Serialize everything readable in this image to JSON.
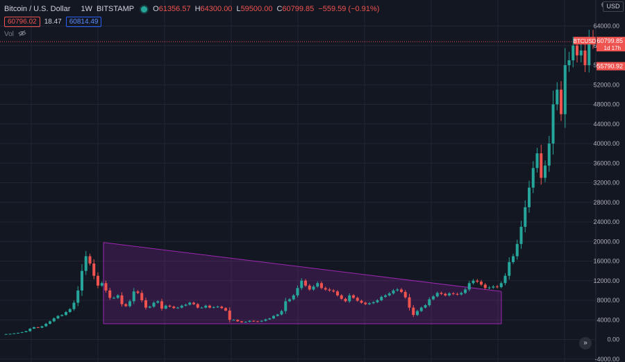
{
  "legend": {
    "symbol": "Bitcoin / U.S. Dollar",
    "interval": "1W",
    "exchange": "BITSTAMP",
    "open_label": "O",
    "open": "61356.57",
    "high_label": "H",
    "high": "64300.00",
    "low_label": "L",
    "low": "59500.00",
    "close_label": "C",
    "close": "60799.85",
    "change": "−559.59 (−0.91%)",
    "bid": "60796.02",
    "spread": "18.47",
    "ask": "60814.49",
    "volume_label": "Vol"
  },
  "currency_button": "USD",
  "price_scale_top": "6",
  "current_price": {
    "symbol": "BTCUSD",
    "price": "60799.85",
    "countdown": "1d 17h"
  },
  "avg_price_marker": "55790.92",
  "colors": {
    "bg": "#131722",
    "grid": "#222633",
    "up": "#26a69a",
    "down": "#ef5350",
    "pattern": "#9c27b0"
  },
  "chart_data": {
    "type": "candlestick",
    "yaxis_ticks": [
      64000,
      60000,
      56000,
      52000,
      48000,
      44000,
      40000,
      36000,
      32000,
      28000,
      24000,
      20000,
      16000,
      12000,
      8000,
      4000,
      0,
      -4000
    ],
    "yaxis_labels": [
      "64000.00",
      "60000.00",
      "56000.00",
      "52000.00",
      "48000.00",
      "44000.00",
      "40000.00",
      "36000.00",
      "32000.00",
      "28000.00",
      "24000.00",
      "20000.00",
      "16000.00",
      "12000.00",
      "8000.00",
      "4000.00",
      "0.00",
      "-4000.00"
    ],
    "price_series": [
      1000,
      1100,
      1150,
      1250,
      1350,
      1500,
      1700,
      2200,
      2500,
      2400,
      2700,
      3200,
      3700,
      4300,
      4800,
      5000,
      5600,
      6200,
      7500,
      10000,
      14000,
      17000,
      15500,
      13000,
      11000,
      11500,
      10000,
      8500,
      8500,
      9000,
      7200,
      6800,
      7800,
      9800,
      9500,
      8000,
      6500,
      6700,
      7500,
      7800,
      6300,
      6900,
      6700,
      6400,
      6500,
      6900,
      7100,
      7500,
      7200,
      6500,
      6500,
      6900,
      6500,
      6600,
      6700,
      6400,
      5900,
      4000,
      4000,
      3700,
      3500,
      3600,
      3800,
      3700,
      3650,
      3800,
      4100,
      4300,
      4800,
      5100,
      5800,
      7800,
      8200,
      9000,
      10500,
      12000,
      11000,
      10200,
      10800,
      11500,
      10500,
      10200,
      10000,
      9800,
      9000,
      8300,
      7800,
      9000,
      8500,
      7900,
      7500,
      7200,
      7400,
      7600,
      8000,
      8700,
      9000,
      9400,
      10000,
      10200,
      9700,
      8600,
      6500,
      5000,
      5800,
      6500,
      7000,
      8200,
      8800,
      9500,
      9300,
      9000,
      9400,
      9300,
      9200,
      9500,
      10200,
      11500,
      12000,
      11800,
      11200,
      10500,
      10600,
      10800,
      10700,
      11500,
      13000,
      15800,
      17000,
      19500,
      23000,
      27000,
      31000,
      35000,
      38000,
      33000,
      35500,
      40000,
      48000,
      51000,
      46000,
      56000,
      57000,
      60000,
      58000,
      59000,
      56000,
      61356,
      60800
    ]
  },
  "pattern": {
    "upper_line": {
      "start": 19800,
      "end": 9800
    },
    "lower_line": {
      "value": 3200
    }
  }
}
